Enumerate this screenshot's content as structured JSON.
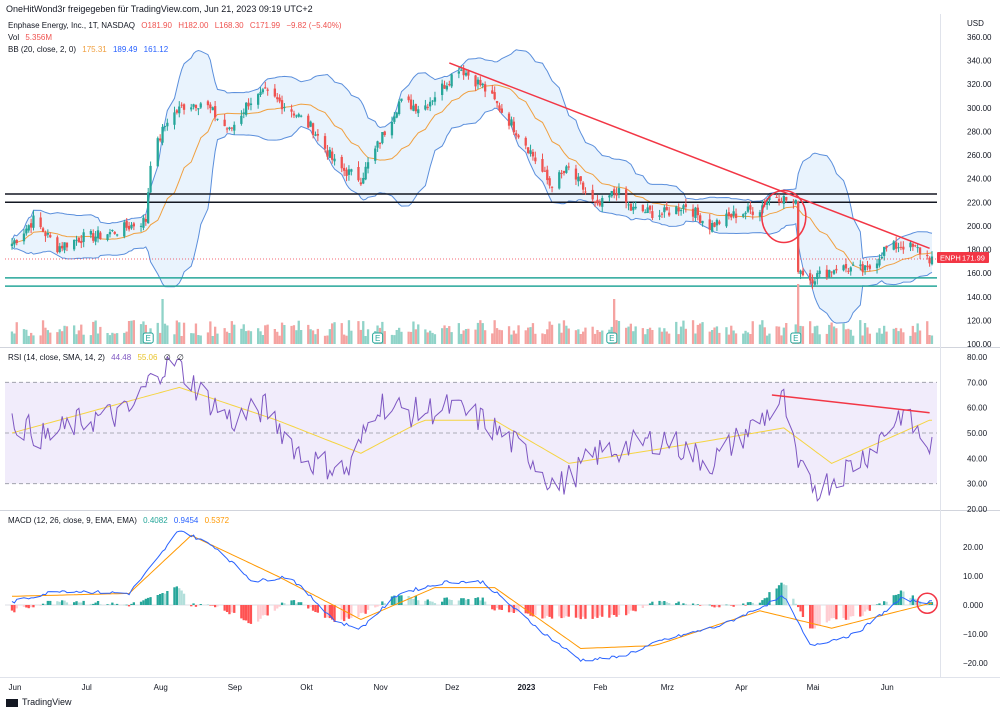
{
  "header": {
    "text": "OneHitWond3r freigegeben für TradingView.com, Jun 21, 2023 09:19 UTC+2"
  },
  "legend_price": {
    "symbol": "Enphase Energy, Inc., 1T, NASDAQ",
    "o": "O181.90",
    "h": "H182.00",
    "l": "L168.30",
    "c": "C171.99",
    "chg": "−9.82 (−5.40%)"
  },
  "legend_vol": {
    "label": "Vol",
    "value": "5.356M"
  },
  "legend_bb": {
    "label": "BB (20, close, 2, 0)",
    "basis": "175.31",
    "upper": "189.49",
    "lower": "161.12"
  },
  "legend_rsi": {
    "label": "RSI (14, close, SMA, 14, 2)",
    "rsi": "44.48",
    "ma": "55.06",
    "a": "∅",
    "b": "∅"
  },
  "legend_macd": {
    "label": "MACD (12, 26, close, 9, EMA, EMA)",
    "hist": "0.4082",
    "macd": "0.9454",
    "signal": "0.5372"
  },
  "currency": "USD",
  "price_tag": {
    "symbol": "ENPH",
    "value": "171.99"
  },
  "footer": {
    "brand": "TradingView"
  },
  "colors": {
    "up": "#26a69a",
    "down": "#ef5350",
    "bb": "#5b8fdc",
    "bb_fill": "#e3f0fc",
    "basis": "#f0a040",
    "trendline": "#f23645",
    "rsi": "#7e57c2",
    "rsi_ma": "#f5d442",
    "rsi_band": "#f1ecfb",
    "macd": "#2962ff",
    "signal": "#ff9800",
    "support": "#26a69a"
  },
  "earnings_marker": "E",
  "chart_data": [
    {
      "type": "candlestick",
      "title": "Enphase Energy, Inc., 1T, NASDAQ",
      "x_ticks": [
        "Jun",
        "Jul",
        "Aug",
        "Sep",
        "Okt",
        "Nov",
        "Dez",
        "2023",
        "Feb",
        "Mrz",
        "Apr",
        "Mai",
        "Jun"
      ],
      "y_ticks": [
        "360.00",
        "340.00",
        "320.00",
        "300.00",
        "280.00",
        "260.00",
        "240.00",
        "220.00",
        "200.00",
        "180.00",
        "160.00",
        "140.00",
        "120.00",
        "100.00"
      ],
      "ylim": [
        100,
        365
      ],
      "close_path": [
        [
          "2022-06-01",
          185
        ],
        [
          "2022-06-10",
          205
        ],
        [
          "2022-06-20",
          182
        ],
        [
          "2022-06-30",
          190
        ],
        [
          "2022-07-08",
          192
        ],
        [
          "2022-07-15",
          196
        ],
        [
          "2022-07-27",
          205
        ],
        [
          "2022-07-29",
          255
        ],
        [
          "2022-08-05",
          290
        ],
        [
          "2022-08-12",
          302
        ],
        [
          "2022-08-20",
          305
        ],
        [
          "2022-08-31",
          280
        ],
        [
          "2022-09-08",
          305
        ],
        [
          "2022-09-15",
          312
        ],
        [
          "2022-09-25",
          300
        ],
        [
          "2022-10-05",
          282
        ],
        [
          "2022-10-15",
          250
        ],
        [
          "2022-10-25",
          240
        ],
        [
          "2022-11-01",
          268
        ],
        [
          "2022-11-10",
          305
        ],
        [
          "2022-11-20",
          300
        ],
        [
          "2022-11-30",
          322
        ],
        [
          "2022-12-05",
          335
        ],
        [
          "2022-12-15",
          318
        ],
        [
          "2022-12-22",
          300
        ],
        [
          "2023-01-02",
          270
        ],
        [
          "2023-01-12",
          235
        ],
        [
          "2023-01-20",
          248
        ],
        [
          "2023-02-01",
          215
        ],
        [
          "2023-02-09",
          230
        ],
        [
          "2023-02-15",
          214
        ],
        [
          "2023-02-28",
          210
        ],
        [
          "2023-03-10",
          218
        ],
        [
          "2023-03-20",
          200
        ],
        [
          "2023-03-31",
          210
        ],
        [
          "2023-04-10",
          215
        ],
        [
          "2023-04-15",
          228
        ],
        [
          "2023-04-25",
          218
        ],
        [
          "2023-04-26",
          165
        ],
        [
          "2023-05-01",
          155
        ],
        [
          "2023-05-12",
          165
        ],
        [
          "2023-05-25",
          162
        ],
        [
          "2023-06-01",
          180
        ],
        [
          "2023-06-08",
          184
        ],
        [
          "2023-06-15",
          180
        ],
        [
          "2023-06-20",
          172
        ]
      ],
      "bollinger_bands": {
        "basis": "175.31",
        "upper": "189.49",
        "lower": "161.12"
      },
      "trendline": [
        [
          "2022-12-01",
          338
        ],
        [
          "2023-06-20",
          181
        ]
      ],
      "horizontal_lines": [
        {
          "color": "black",
          "value": 227
        },
        {
          "color": "black",
          "value": 220
        },
        {
          "color": "teal",
          "value": 156
        },
        {
          "color": "teal",
          "value": 149
        }
      ],
      "last_value": 171.99,
      "annotations": [
        "circle at Apr 2023 breakout/gap",
        "earnings markers E"
      ]
    },
    {
      "type": "line",
      "title": "RSI (14, close, SMA, 14, 2)",
      "y_ticks": [
        "80.00",
        "70.00",
        "60.00",
        "50.00",
        "40.00",
        "30.00",
        "20.00"
      ],
      "ylim": [
        20,
        80
      ],
      "band": [
        30,
        70
      ],
      "series": [
        {
          "name": "RSI",
          "points": [
            [
              "2022-06-01",
              55
            ],
            [
              "2022-06-15",
              48
            ],
            [
              "2022-07-01",
              55
            ],
            [
              "2022-07-20",
              58
            ],
            [
              "2022-08-01",
              75
            ],
            [
              "2022-08-08",
              78
            ],
            [
              "2022-08-20",
              65
            ],
            [
              "2022-09-01",
              55
            ],
            [
              "2022-09-15",
              60
            ],
            [
              "2022-10-01",
              40
            ],
            [
              "2022-10-20",
              35
            ],
            [
              "2022-11-01",
              62
            ],
            [
              "2022-11-15",
              58
            ],
            [
              "2022-12-01",
              60
            ],
            [
              "2022-12-15",
              55
            ],
            [
              "2023-01-05",
              40
            ],
            [
              "2023-01-15",
              28
            ],
            [
              "2023-02-01",
              42
            ],
            [
              "2023-02-15",
              45
            ],
            [
              "2023-03-01",
              48
            ],
            [
              "2023-03-20",
              38
            ],
            [
              "2023-04-10",
              55
            ],
            [
              "2023-04-20",
              63
            ],
            [
              "2023-04-26",
              35
            ],
            [
              "2023-05-05",
              28
            ],
            [
              "2023-05-25",
              42
            ],
            [
              "2023-06-08",
              58
            ],
            [
              "2023-06-20",
              44.48
            ]
          ]
        },
        {
          "name": "SMA",
          "points": [
            [
              "2022-06-01",
              50
            ],
            [
              "2022-08-10",
              68
            ],
            [
              "2022-09-20",
              55
            ],
            [
              "2022-10-25",
              42
            ],
            [
              "2022-11-20",
              55
            ],
            [
              "2022-12-20",
              55
            ],
            [
              "2023-01-20",
              38
            ],
            [
              "2023-03-01",
              44
            ],
            [
              "2023-04-20",
              52
            ],
            [
              "2023-05-10",
              38
            ],
            [
              "2023-06-20",
              55.06
            ]
          ]
        }
      ],
      "trendline": [
        [
          "2023-04-15",
          65
        ],
        [
          "2023-06-20",
          58
        ]
      ]
    },
    {
      "type": "line",
      "title": "MACD (12, 26, close, 9, EMA, EMA)",
      "y_ticks": [
        "20.00",
        "10.00",
        "0.000",
        "−10.00",
        "−20.00"
      ],
      "ylim": [
        -22,
        28
      ],
      "series": [
        {
          "name": "MACD",
          "points": [
            [
              "2022-06-01",
              1
            ],
            [
              "2022-06-20",
              5
            ],
            [
              "2022-07-20",
              4
            ],
            [
              "2022-08-01",
              16
            ],
            [
              "2022-08-10",
              26
            ],
            [
              "2022-08-25",
              20
            ],
            [
              "2022-09-10",
              8
            ],
            [
              "2022-09-25",
              10
            ],
            [
              "2022-10-15",
              -6
            ],
            [
              "2022-10-25",
              -8
            ],
            [
              "2022-11-10",
              4
            ],
            [
              "2022-11-30",
              8
            ],
            [
              "2022-12-15",
              8
            ],
            [
              "2023-01-10",
              -10
            ],
            [
              "2023-01-25",
              -19
            ],
            [
              "2023-02-10",
              -18
            ],
            [
              "2023-03-01",
              -12
            ],
            [
              "2023-03-25",
              -7
            ],
            [
              "2023-04-20",
              3
            ],
            [
              "2023-05-01",
              -14
            ],
            [
              "2023-05-20",
              -10
            ],
            [
              "2023-06-08",
              2
            ],
            [
              "2023-06-20",
              0.9454
            ]
          ]
        },
        {
          "name": "Signal",
          "points": [
            [
              "2022-06-01",
              3
            ],
            [
              "2022-07-20",
              4
            ],
            [
              "2022-08-15",
              24
            ],
            [
              "2022-09-20",
              10
            ],
            [
              "2022-10-25",
              -5
            ],
            [
              "2022-11-25",
              6
            ],
            [
              "2022-12-20",
              6
            ],
            [
              "2023-01-25",
              -15
            ],
            [
              "2023-02-25",
              -14
            ],
            [
              "2023-04-10",
              -2
            ],
            [
              "2023-05-10",
              -8
            ],
            [
              "2023-06-20",
              0.5372
            ]
          ]
        }
      ],
      "histogram_last": 0.4082
    }
  ]
}
